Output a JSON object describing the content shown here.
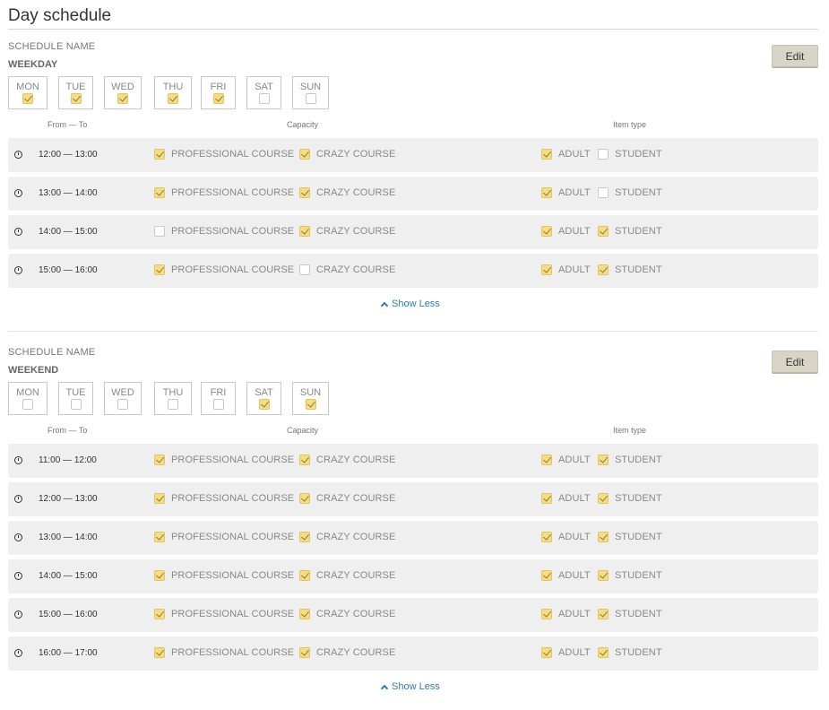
{
  "page": {
    "title": "Day schedule"
  },
  "columns": {
    "from_to": "From — To",
    "capacity": "Capacity",
    "item_type": "Item type"
  },
  "show_less_label": "Show Less",
  "edit_label": "Edit",
  "schedules": [
    {
      "label": "SCHEDULE NAME",
      "name": "WEEKDAY",
      "days": [
        {
          "label": "MON",
          "checked": true
        },
        {
          "label": "TUE",
          "checked": true
        },
        {
          "label": "WED",
          "checked": true
        },
        {
          "label": "THU",
          "checked": true
        },
        {
          "label": "FRI",
          "checked": true
        },
        {
          "label": "SAT",
          "checked": false
        },
        {
          "label": "SUN",
          "checked": false
        }
      ],
      "rows": [
        {
          "time": "12:00 — 13:00",
          "professional": true,
          "crazy": true,
          "adult": true,
          "student": false
        },
        {
          "time": "13:00 — 14:00",
          "professional": true,
          "crazy": true,
          "adult": true,
          "student": false
        },
        {
          "time": "14:00 — 15:00",
          "professional": false,
          "crazy": true,
          "adult": true,
          "student": true
        },
        {
          "time": "15:00 — 16:00",
          "professional": true,
          "crazy": false,
          "adult": true,
          "student": true
        }
      ]
    },
    {
      "label": "SCHEDULE NAME",
      "name": "WEEKEND",
      "days": [
        {
          "label": "MON",
          "checked": false
        },
        {
          "label": "TUE",
          "checked": false
        },
        {
          "label": "WED",
          "checked": false
        },
        {
          "label": "THU",
          "checked": false
        },
        {
          "label": "FRI",
          "checked": false
        },
        {
          "label": "SAT",
          "checked": true
        },
        {
          "label": "SUN",
          "checked": true
        }
      ],
      "rows": [
        {
          "time": "11:00 — 12:00",
          "professional": true,
          "crazy": true,
          "adult": true,
          "student": true
        },
        {
          "time": "12:00 — 13:00",
          "professional": true,
          "crazy": true,
          "adult": true,
          "student": true
        },
        {
          "time": "13:00 — 14:00",
          "professional": true,
          "crazy": true,
          "adult": true,
          "student": true
        },
        {
          "time": "14:00 — 15:00",
          "professional": true,
          "crazy": true,
          "adult": true,
          "student": true
        },
        {
          "time": "15:00 — 16:00",
          "professional": true,
          "crazy": true,
          "adult": true,
          "student": true
        },
        {
          "time": "16:00 — 17:00",
          "professional": true,
          "crazy": true,
          "adult": true,
          "student": true
        }
      ]
    }
  ],
  "option_labels": {
    "professional": "PROFESSIONAL COURSE",
    "crazy": "CRAZY COURSE",
    "adult": "ADULT",
    "student": "STUDENT"
  },
  "icons": {
    "row": "clock-icon",
    "show_less": "chevron-up-icon"
  },
  "colors": {
    "accent_link": "#2e7db2",
    "checkbox_checked": "#f6dd84",
    "row_bg": "#efefef",
    "edit_button": "#d8d5c6"
  }
}
